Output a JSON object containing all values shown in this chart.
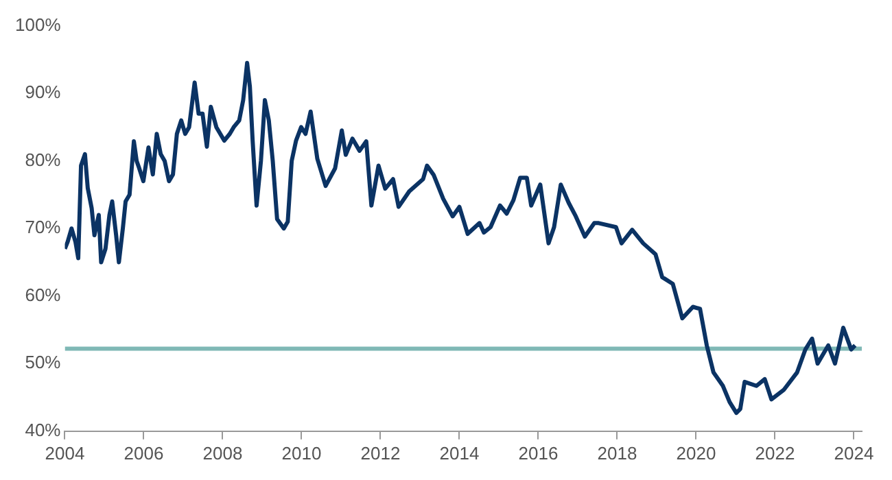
{
  "chart_data": {
    "type": "line",
    "x": [
      2004.0,
      2004.07,
      2004.17,
      2004.27,
      2004.34,
      2004.41,
      2004.51,
      2004.58,
      2004.68,
      2004.75,
      2004.86,
      2004.92,
      2005.03,
      2005.13,
      2005.2,
      2005.3,
      2005.37,
      2005.47,
      2005.54,
      2005.64,
      2005.75,
      2005.82,
      2005.88,
      2005.99,
      2006.12,
      2006.23,
      2006.33,
      2006.43,
      2006.53,
      2006.64,
      2006.74,
      2006.84,
      2006.95,
      2007.05,
      2007.15,
      2007.29,
      2007.39,
      2007.49,
      2007.6,
      2007.7,
      2007.84,
      2007.94,
      2008.04,
      2008.18,
      2008.28,
      2008.42,
      2008.52,
      2008.62,
      2008.69,
      2008.76,
      2008.86,
      2008.97,
      2009.07,
      2009.17,
      2009.27,
      2009.38,
      2009.55,
      2009.65,
      2009.75,
      2009.86,
      2009.99,
      2010.1,
      2010.23,
      2010.4,
      2010.61,
      2010.85,
      2011.02,
      2011.12,
      2011.29,
      2011.47,
      2011.64,
      2011.77,
      2011.95,
      2012.12,
      2012.32,
      2012.46,
      2012.73,
      2013.08,
      2013.18,
      2013.35,
      2013.59,
      2013.83,
      2014.0,
      2014.21,
      2014.51,
      2014.62,
      2014.79,
      2015.03,
      2015.2,
      2015.37,
      2015.54,
      2015.71,
      2015.82,
      2016.05,
      2016.26,
      2016.4,
      2016.57,
      2016.77,
      2016.95,
      2017.18,
      2017.42,
      2017.53,
      2017.97,
      2018.11,
      2018.38,
      2018.66,
      2018.97,
      2019.14,
      2019.41,
      2019.65,
      2019.92,
      2020.1,
      2020.27,
      2020.44,
      2020.68,
      2020.85,
      2021.02,
      2021.12,
      2021.23,
      2021.53,
      2021.74,
      2021.91,
      2022.22,
      2022.56,
      2022.77,
      2022.94,
      2023.08,
      2023.35,
      2023.52,
      2023.73,
      2023.93,
      2024.03
    ],
    "series": [
      {
        "color": "#0b3364",
        "values": [
          67,
          68,
          70,
          68,
          65.6,
          79.3,
          81,
          76,
          73,
          69,
          72,
          65,
          67,
          72,
          74,
          69,
          65,
          70,
          74,
          75,
          82.9,
          80,
          79,
          77,
          82,
          78,
          84,
          81,
          80,
          77,
          78,
          84,
          86,
          84,
          85,
          91.6,
          87,
          87,
          82.1,
          88,
          85,
          84,
          83,
          84,
          85,
          86,
          89,
          94.5,
          91,
          83,
          73.4,
          80,
          89,
          86,
          80,
          71.4,
          70,
          71,
          80,
          83,
          85,
          84,
          87.3,
          80.3,
          76.3,
          78.9,
          84.5,
          80.9,
          83.3,
          81.5,
          82.9,
          73.4,
          79.3,
          75.9,
          77.3,
          73.2,
          75.5,
          77.3,
          79.3,
          77.9,
          74.4,
          71.8,
          73.2,
          69.2,
          70.8,
          69.4,
          70.2,
          73.4,
          72.2,
          74.2,
          77.5,
          77.5,
          73.4,
          76.5,
          67.8,
          70.2,
          76.5,
          73.8,
          71.8,
          68.8,
          70.8,
          70.8,
          70.2,
          67.8,
          69.8,
          67.8,
          66.2,
          62.8,
          61.8,
          56.7,
          58.4,
          58.1,
          52.7,
          48.7,
          46.7,
          44.3,
          42.7,
          43.3,
          47.3,
          46.7,
          47.7,
          44.7,
          46.1,
          48.7,
          52.1,
          53.7,
          50,
          52.7,
          50,
          55.3,
          52.1,
          52.7
        ]
      }
    ],
    "xlim": [
      2004,
      2024.2
    ],
    "xticks": [
      2004,
      2006,
      2008,
      2010,
      2012,
      2014,
      2016,
      2018,
      2020,
      2022,
      2024
    ],
    "ylim": [
      40,
      100
    ],
    "yticks": [
      {
        "value": 40,
        "label": "40%"
      },
      {
        "value": 50,
        "label": "50%"
      },
      {
        "value": 60,
        "label": "60%"
      },
      {
        "value": 70,
        "label": "70%"
      },
      {
        "value": 80,
        "label": "80%"
      },
      {
        "value": 90,
        "label": "90%"
      },
      {
        "value": 100,
        "label": "100%"
      }
    ],
    "ref_lines": [
      {
        "axis": "y",
        "value": 52.2,
        "color": "#7fb8b5"
      }
    ],
    "grid": false,
    "legend": false,
    "marker": "none",
    "line_style": "solid"
  }
}
